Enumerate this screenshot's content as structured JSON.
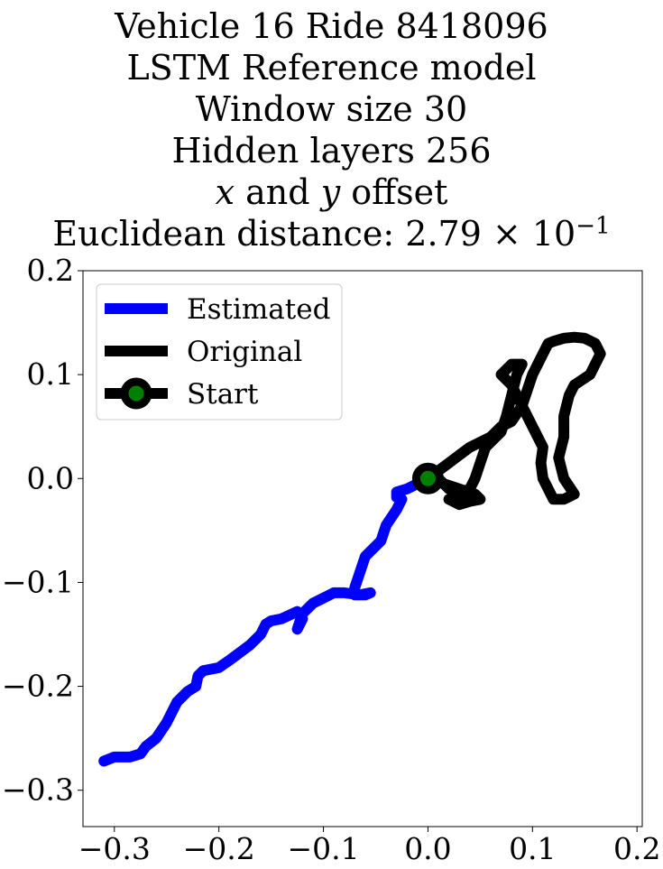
{
  "title_lines": [
    {
      "pre": "Vehicle 16 Ride 8418096"
    },
    {
      "pre": "LSTM Reference model"
    },
    {
      "pre": "Window size 30"
    },
    {
      "pre": "Hidden layers 256"
    },
    {
      "pre": "",
      "math1": "x",
      "mid": " and ",
      "math2": "y",
      "post": " offset"
    },
    {
      "pre": "Euclidean distance: 2.79 × 10",
      "sup": "−1"
    }
  ],
  "chart_data": {
    "type": "line",
    "title": "Vehicle 16 Ride 8418096 LSTM Reference model Window size 30 Hidden layers 256 x and y offset Euclidean distance: 2.79×10^-1",
    "xlabel": "",
    "ylabel": "",
    "xlim": [
      -0.33,
      0.205
    ],
    "ylim": [
      -0.335,
      0.2
    ],
    "xticks": [
      -0.3,
      -0.2,
      -0.1,
      0.0,
      0.1,
      0.2
    ],
    "xtick_labels": [
      "−0.3",
      "−0.2",
      "−0.1",
      "0.0",
      "0.1",
      "0.2"
    ],
    "yticks": [
      -0.3,
      -0.2,
      -0.1,
      0.0,
      0.1,
      0.2
    ],
    "ytick_labels": [
      "−0.3",
      "−0.2",
      "−0.1",
      "0.0",
      "0.1",
      "0.2"
    ],
    "grid": false,
    "legend_position": "top-left",
    "series": [
      {
        "name": "Estimated",
        "color": "#0000ff",
        "x": [
          0.0,
          -0.01,
          -0.02,
          -0.03,
          -0.03,
          -0.025,
          -0.03,
          -0.04,
          -0.045,
          -0.05,
          -0.06,
          -0.065,
          -0.07,
          -0.07,
          -0.06,
          -0.055,
          -0.065,
          -0.08,
          -0.09,
          -0.1,
          -0.11,
          -0.12,
          -0.125,
          -0.12,
          -0.125,
          -0.14,
          -0.15,
          -0.155,
          -0.16,
          -0.17,
          -0.19,
          -0.2,
          -0.215,
          -0.22,
          -0.222,
          -0.23,
          -0.24,
          -0.25,
          -0.26,
          -0.27,
          -0.275,
          -0.285,
          -0.3,
          -0.31
        ],
        "y": [
          0.0,
          -0.005,
          -0.01,
          -0.013,
          -0.018,
          -0.02,
          -0.03,
          -0.045,
          -0.06,
          -0.065,
          -0.075,
          -0.09,
          -0.105,
          -0.112,
          -0.112,
          -0.11,
          -0.112,
          -0.11,
          -0.11,
          -0.115,
          -0.12,
          -0.13,
          -0.145,
          -0.135,
          -0.128,
          -0.135,
          -0.137,
          -0.14,
          -0.15,
          -0.16,
          -0.175,
          -0.182,
          -0.185,
          -0.19,
          -0.2,
          -0.205,
          -0.215,
          -0.235,
          -0.25,
          -0.258,
          -0.265,
          -0.268,
          -0.268,
          -0.272
        ]
      },
      {
        "name": "Original",
        "color": "#000000",
        "x": [
          0.0,
          0.02,
          0.04,
          0.06,
          0.07,
          0.08,
          0.09,
          0.095,
          0.1,
          0.105,
          0.11,
          0.115,
          0.12,
          0.13,
          0.14,
          0.15,
          0.16,
          0.165,
          0.155,
          0.14,
          0.135,
          0.13,
          0.13,
          0.125,
          0.13,
          0.14,
          0.13,
          0.12,
          0.115,
          0.11,
          0.108,
          0.11,
          0.1,
          0.09,
          0.08,
          0.07,
          0.075,
          0.08,
          0.09,
          0.085,
          0.08,
          0.075,
          0.07,
          0.065,
          0.055,
          0.05,
          0.045,
          0.04,
          0.03,
          0.02,
          0.01,
          0.0,
          0.015,
          0.03,
          0.045,
          0.05,
          0.04,
          0.03,
          0.02
        ],
        "y": [
          0.0,
          0.015,
          0.03,
          0.04,
          0.05,
          0.055,
          0.07,
          0.085,
          0.1,
          0.11,
          0.12,
          0.13,
          0.132,
          0.135,
          0.136,
          0.135,
          0.13,
          0.12,
          0.1,
          0.09,
          0.08,
          0.06,
          0.04,
          0.02,
          0.0,
          -0.015,
          -0.02,
          -0.02,
          -0.01,
          0.0,
          0.015,
          0.03,
          0.05,
          0.07,
          0.09,
          0.1,
          0.105,
          0.11,
          0.11,
          0.1,
          0.08,
          0.06,
          0.045,
          0.04,
          0.03,
          0.015,
          0.0,
          -0.01,
          -0.015,
          -0.01,
          0.0,
          0.0,
          -0.005,
          -0.01,
          -0.015,
          -0.02,
          -0.022,
          -0.025,
          -0.02
        ]
      },
      {
        "name": "Start",
        "color": "#000000",
        "marker_face": "#008000",
        "x": [
          0.0
        ],
        "y": [
          0.0
        ]
      }
    ]
  }
}
